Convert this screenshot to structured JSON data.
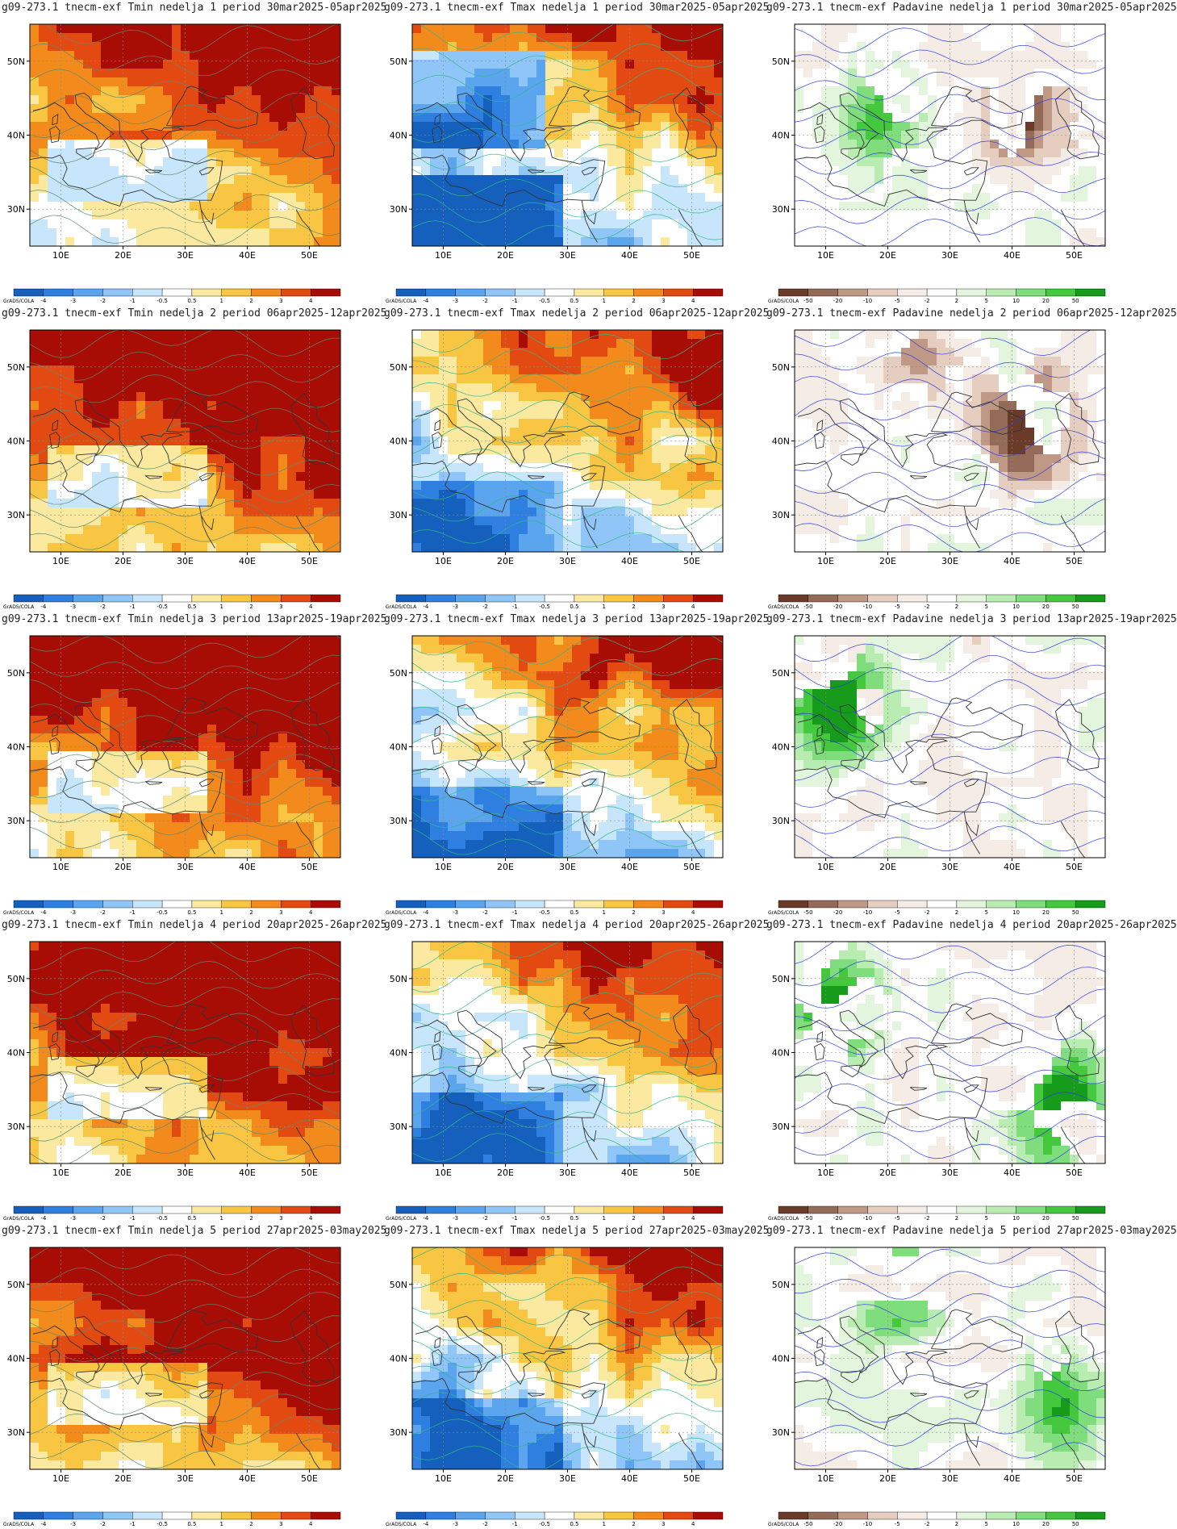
{
  "colorbars": {
    "temperature": {
      "colors": [
        "#1560bd",
        "#2f7fe0",
        "#5ba5ef",
        "#8fc6f7",
        "#c8e6fb",
        "#ffffff",
        "#fbe9a0",
        "#f8c642",
        "#f38a1c",
        "#e24a12",
        "#a80d05"
      ],
      "labels": [
        "-4",
        "-3",
        "-2",
        "-1",
        "-0.5",
        "0.5",
        "1",
        "2",
        "3",
        "4"
      ]
    },
    "precipitation": {
      "colors": [
        "#6b3b2a",
        "#946a58",
        "#bf9886",
        "#e5cdc0",
        "#f6ece6",
        "#ffffff",
        "#e3f5dd",
        "#b9ecb0",
        "#80dd7e",
        "#43c83e",
        "#169c1a"
      ],
      "labels": [
        "-50",
        "-20",
        "-10",
        "-5",
        "-2",
        "2",
        "5",
        "10",
        "20",
        "50"
      ]
    }
  },
  "axes": {
    "lon_labels": [
      "10E",
      "20E",
      "30E",
      "40E",
      "50E"
    ],
    "lat_labels": [
      "50N",
      "40N",
      "30N"
    ]
  },
  "grads_label": "GrADS/COLA",
  "panels": [
    {
      "title": "g09-273.1 tnecm-exf Tmin nedelja 1 period 30mar2025-05apr2025",
      "variable": "Tmin",
      "colorbar": "temperature"
    },
    {
      "title": "g09-273.1 tnecm-exf Tmax nedelja 1 period 30mar2025-05apr2025",
      "variable": "Tmax",
      "colorbar": "temperature"
    },
    {
      "title": "g09-273.1 tnecm-exf Padavine nedelja 1 period 30mar2025-05apr2025",
      "variable": "Padavine",
      "colorbar": "precipitation"
    },
    {
      "title": "g09-273.1 tnecm-exf Tmin nedelja 2 period 06apr2025-12apr2025",
      "variable": "Tmin",
      "colorbar": "temperature"
    },
    {
      "title": "g09-273.1 tnecm-exf Tmax nedelja 2 period 06apr2025-12apr2025",
      "variable": "Tmax",
      "colorbar": "temperature"
    },
    {
      "title": "g09-273.1 tnecm-exf Padavine nedelja 2 period 06apr2025-12apr2025",
      "variable": "Padavine",
      "colorbar": "precipitation"
    },
    {
      "title": "g09-273.1 tnecm-exf Tmin nedelja 3 period 13apr2025-19apr2025",
      "variable": "Tmin",
      "colorbar": "temperature"
    },
    {
      "title": "g09-273.1 tnecm-exf Tmax nedelja 3 period 13apr2025-19apr2025",
      "variable": "Tmax",
      "colorbar": "temperature"
    },
    {
      "title": "g09-273.1 tnecm-exf Padavine nedelja 3 period 13apr2025-19apr2025",
      "variable": "Padavine",
      "colorbar": "precipitation"
    },
    {
      "title": "g09-273.1 tnecm-exf Tmin nedelja 4 period 20apr2025-26apr2025",
      "variable": "Tmin",
      "colorbar": "temperature"
    },
    {
      "title": "g09-273.1 tnecm-exf Tmax nedelja 4 period 20apr2025-26apr2025",
      "variable": "Tmax",
      "colorbar": "temperature"
    },
    {
      "title": "g09-273.1 tnecm-exf Padavine nedelja 4 period 20apr2025-26apr2025",
      "variable": "Padavine",
      "colorbar": "precipitation"
    },
    {
      "title": "g09-273.1 tnecm-exf Tmin nedelja 5 period 27apr2025-03may2025",
      "variable": "Tmin",
      "colorbar": "temperature"
    },
    {
      "title": "g09-273.1 tnecm-exf Tmax nedelja 5 period 27apr2025-03may2025",
      "variable": "Tmax",
      "colorbar": "temperature"
    },
    {
      "title": "g09-273.1 tnecm-exf Padavine nedelja 5 period 27apr2025-03may2025",
      "variable": "Padavine",
      "colorbar": "precipitation"
    }
  ]
}
